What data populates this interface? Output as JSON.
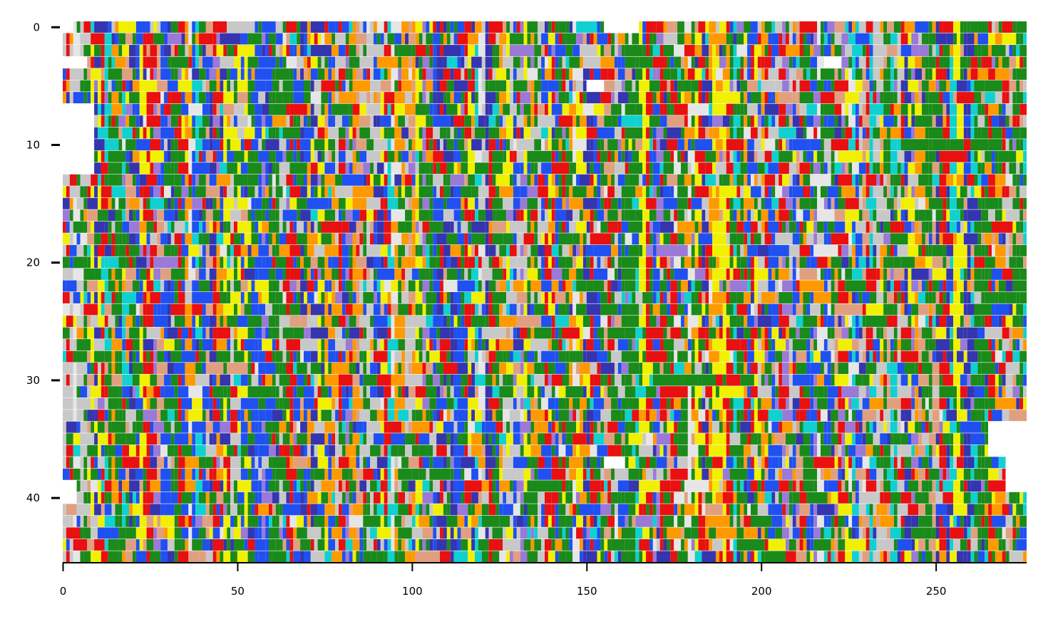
{
  "chart_data": {
    "type": "heatmap",
    "description_kind": "multiple sequence alignment colored by residue class",
    "rows": 46,
    "columns": 276,
    "xlim": [
      0,
      275
    ],
    "ylim": [
      45.5,
      -0.5
    ],
    "x_ticks": [
      0,
      50,
      100,
      150,
      200,
      250
    ],
    "y_ticks": [
      0,
      10,
      20,
      30,
      40
    ],
    "grid": false,
    "legend": "none",
    "gap_color": "#ffffff",
    "residue_palette": [
      {
        "class": "hydrophobic-green",
        "color": "#1a8a1a",
        "weight": 24
      },
      {
        "class": "acidic-red",
        "color": "#e81010",
        "weight": 11
      },
      {
        "class": "basic-blue",
        "color": "#2050f0",
        "weight": 11
      },
      {
        "class": "polar-orange",
        "color": "#ff9900",
        "weight": 9
      },
      {
        "class": "neutral-gray",
        "color": "#c8c8c8",
        "weight": 9
      },
      {
        "class": "aromatic-yellow",
        "color": "#f0f000",
        "weight": 6
      },
      {
        "class": "cyan",
        "color": "#10d0d0",
        "weight": 5
      },
      {
        "class": "dark-blue",
        "color": "#3535b0",
        "weight": 6
      },
      {
        "class": "salmon",
        "color": "#e0a080",
        "weight": 5
      },
      {
        "class": "purple",
        "color": "#9b79d6",
        "weight": 4
      },
      {
        "class": "light-gray",
        "color": "#e6e6e6",
        "weight": 4
      }
    ],
    "gap_regions": [
      {
        "row_from": 0,
        "row_to": 0,
        "col_from": 0,
        "col_to": 2
      },
      {
        "row_from": 0,
        "row_to": 0,
        "col_from": 155,
        "col_to": 164
      },
      {
        "row_from": 3,
        "row_to": 3,
        "col_from": 0,
        "col_to": 6
      },
      {
        "row_from": 3,
        "row_to": 3,
        "col_from": 218,
        "col_to": 222
      },
      {
        "row_from": 5,
        "row_to": 5,
        "col_from": 150,
        "col_to": 154
      },
      {
        "row_from": 7,
        "row_to": 12,
        "col_from": 0,
        "col_to": 8
      },
      {
        "row_from": 34,
        "row_to": 36,
        "col_from": 265,
        "col_to": 275
      },
      {
        "row_from": 37,
        "row_to": 39,
        "col_from": 270,
        "col_to": 275
      },
      {
        "row_from": 37,
        "row_to": 37,
        "col_from": 155,
        "col_to": 160
      },
      {
        "row_from": 39,
        "row_to": 40,
        "col_from": 0,
        "col_to": 3
      }
    ]
  }
}
